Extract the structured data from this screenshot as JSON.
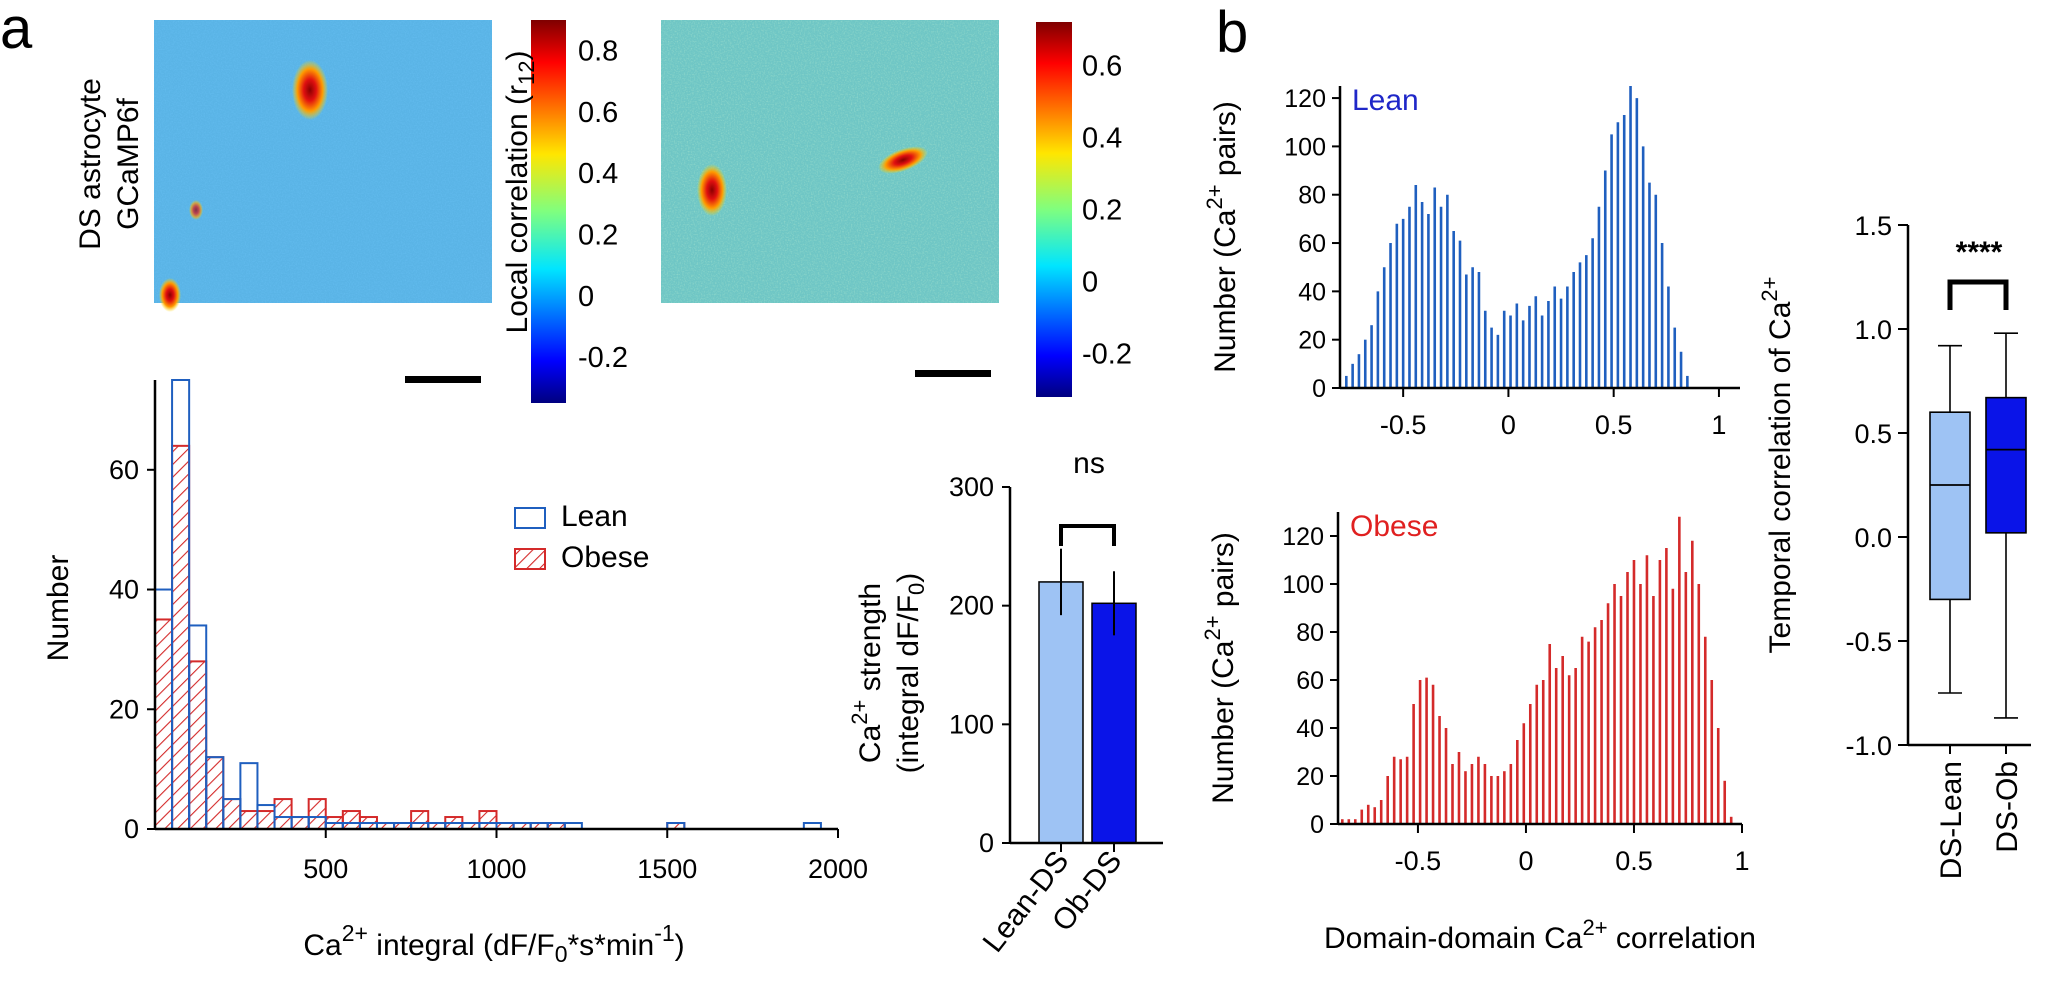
{
  "figure": {
    "panel_a_letter": "a",
    "panel_b_letter": "b"
  },
  "colors": {
    "lean_blue": "#1f5fbf",
    "obese_red": "#d42a2a",
    "lean_light": "#9ec3f4",
    "dark_blue": "#0a14e8",
    "lean_text": "#1f27c8",
    "obese_text": "#e02020"
  },
  "images": {
    "row_label_line1": "DS astrocyte",
    "row_label_line2": "GCaMP6f",
    "colorbar1": {
      "title": "Local correlation (r",
      "title_sub": "12",
      "title_end": ")",
      "ticks": [
        "0.8",
        "0.6",
        "0.4",
        "0.2",
        "0",
        "-0.2"
      ],
      "tick_values": [
        0.8,
        0.6,
        0.4,
        0.2,
        0,
        -0.2
      ],
      "range": [
        -0.35,
        0.9
      ]
    },
    "colorbar2": {
      "ticks": [
        "0.6",
        "0.4",
        "0.2",
        "0",
        "-0.2"
      ],
      "tick_values": [
        0.6,
        0.4,
        0.2,
        0,
        -0.2
      ],
      "range": [
        -0.32,
        0.72
      ]
    },
    "colormap": "jet",
    "heatmap_background": "#5ab4e6"
  },
  "chart_data": [
    {
      "id": "histogram",
      "type": "bar",
      "title": "",
      "xlabel_main": "Ca",
      "xlabel_sup": "2+",
      "xlabel_rest": " integral (dF/F",
      "xlabel_sub": "0",
      "xlabel_rest2": "*s*min",
      "xlabel_sup2": "-1",
      "xlabel_end": ")",
      "ylabel": "Number",
      "xlim": [
        0,
        2000
      ],
      "ylim": [
        0,
        75
      ],
      "xticks": [
        "500",
        "1000",
        "1500",
        "2000"
      ],
      "xtick_values": [
        500,
        1000,
        1500,
        2000
      ],
      "yticks": [
        "0",
        "20",
        "40",
        "60"
      ],
      "ytick_values": [
        0,
        20,
        40,
        60
      ],
      "bin_width": 50,
      "bin_starts": [
        0,
        50,
        100,
        150,
        200,
        250,
        300,
        350,
        400,
        450,
        500,
        550,
        600,
        650,
        700,
        750,
        800,
        850,
        900,
        950,
        1000,
        1050,
        1100,
        1150,
        1200,
        1500,
        1900
      ],
      "legend": {
        "position": "upper-right",
        "entries": [
          "Lean",
          "Obese"
        ]
      },
      "series": [
        {
          "name": "Lean",
          "style": "outline",
          "values": [
            40,
            75,
            34,
            12,
            5,
            11,
            4,
            2,
            2,
            2,
            1,
            1,
            1,
            1,
            1,
            1,
            1,
            1,
            1,
            1,
            1,
            1,
            1,
            1,
            1,
            1,
            1
          ]
        },
        {
          "name": "Obese",
          "style": "hatched",
          "values": [
            35,
            64,
            28,
            12,
            5,
            3,
            3,
            5,
            2,
            5,
            2,
            3,
            2,
            1,
            1,
            3,
            1,
            2,
            1,
            3,
            1,
            1,
            1,
            1,
            0,
            1,
            0
          ]
        }
      ]
    },
    {
      "id": "strength-bars",
      "type": "bar",
      "ylabel_line1_pre": "Ca",
      "ylabel_line1_sup": "2+",
      "ylabel_line1_post": " strength",
      "ylabel_line2": "(integral dF/F",
      "ylabel_line2_sub": "0",
      "ylabel_line2_end": ")",
      "ylim": [
        0,
        300
      ],
      "yticks": [
        "0",
        "100",
        "200",
        "300"
      ],
      "ytick_values": [
        0,
        100,
        200,
        300
      ],
      "categories": [
        "Lean-DS",
        "Ob-DS"
      ],
      "values": [
        220,
        202
      ],
      "errors": [
        28,
        27
      ],
      "significance": "ns"
    },
    {
      "id": "lean-correlation-hist",
      "type": "bar",
      "label": "Lean",
      "ylabel_pre": "Number (Ca",
      "ylabel_sup": "2+",
      "ylabel_post": " pairs)",
      "xlim": [
        -0.8,
        1.1
      ],
      "ylim": [
        0,
        125
      ],
      "xticks": [
        "-0.5",
        "0",
        "0.5",
        "1"
      ],
      "xtick_values": [
        -0.5,
        0,
        0.5,
        1
      ],
      "yticks": [
        "0",
        "20",
        "40",
        "60",
        "80",
        "100",
        "120"
      ],
      "ytick_values": [
        0,
        20,
        40,
        60,
        80,
        100,
        120
      ],
      "x": [
        -0.77,
        -0.74,
        -0.71,
        -0.68,
        -0.65,
        -0.62,
        -0.59,
        -0.56,
        -0.53,
        -0.5,
        -0.47,
        -0.44,
        -0.41,
        -0.38,
        -0.35,
        -0.32,
        -0.29,
        -0.26,
        -0.23,
        -0.2,
        -0.17,
        -0.14,
        -0.11,
        -0.08,
        -0.05,
        -0.02,
        0.01,
        0.04,
        0.07,
        0.1,
        0.13,
        0.16,
        0.19,
        0.22,
        0.25,
        0.28,
        0.31,
        0.34,
        0.37,
        0.4,
        0.43,
        0.46,
        0.49,
        0.52,
        0.55,
        0.58,
        0.61,
        0.64,
        0.67,
        0.7,
        0.73,
        0.76,
        0.79,
        0.82,
        0.85
      ],
      "values": [
        5,
        10,
        14,
        20,
        26,
        40,
        50,
        60,
        68,
        70,
        75,
        84,
        77,
        72,
        83,
        75,
        80,
        65,
        61,
        47,
        50,
        48,
        32,
        25,
        22,
        32,
        30,
        35,
        28,
        34,
        38,
        30,
        36,
        42,
        37,
        42,
        48,
        52,
        55,
        62,
        75,
        90,
        105,
        110,
        113,
        125,
        120,
        100,
        85,
        80,
        60,
        42,
        25,
        15,
        5
      ]
    },
    {
      "id": "obese-correlation-hist",
      "type": "bar",
      "label": "Obese",
      "ylabel_pre": "Number (Ca",
      "ylabel_sup": "2+",
      "ylabel_post": " pairs)",
      "xlabel_pre": "Domain-domain Ca",
      "xlabel_sup": "2+",
      "xlabel_post": " correlation",
      "xlim": [
        -0.87,
        1.0
      ],
      "ylim": [
        0,
        130
      ],
      "xticks": [
        "-0.5",
        "0",
        "0.5",
        "1"
      ],
      "xtick_values": [
        -0.5,
        0,
        0.5,
        1
      ],
      "yticks": [
        "0",
        "20",
        "40",
        "60",
        "80",
        "100",
        "120"
      ],
      "ytick_values": [
        0,
        20,
        40,
        60,
        80,
        100,
        120
      ],
      "x": [
        -0.85,
        -0.82,
        -0.79,
        -0.76,
        -0.73,
        -0.7,
        -0.67,
        -0.64,
        -0.61,
        -0.58,
        -0.55,
        -0.52,
        -0.49,
        -0.46,
        -0.43,
        -0.4,
        -0.37,
        -0.34,
        -0.31,
        -0.28,
        -0.25,
        -0.22,
        -0.19,
        -0.16,
        -0.13,
        -0.1,
        -0.07,
        -0.04,
        -0.01,
        0.02,
        0.05,
        0.08,
        0.11,
        0.14,
        0.17,
        0.2,
        0.23,
        0.26,
        0.29,
        0.32,
        0.35,
        0.38,
        0.41,
        0.44,
        0.47,
        0.5,
        0.53,
        0.56,
        0.59,
        0.62,
        0.65,
        0.68,
        0.71,
        0.74,
        0.77,
        0.8,
        0.83,
        0.86,
        0.89,
        0.92,
        0.95
      ],
      "values": [
        2,
        2,
        2,
        6,
        8,
        7,
        10,
        20,
        28,
        27,
        28,
        50,
        60,
        61,
        58,
        45,
        40,
        25,
        30,
        22,
        25,
        28,
        25,
        20,
        20,
        22,
        25,
        35,
        42,
        50,
        58,
        60,
        75,
        65,
        70,
        62,
        65,
        78,
        76,
        82,
        85,
        92,
        100,
        95,
        105,
        110,
        100,
        112,
        95,
        110,
        115,
        98,
        128,
        105,
        118,
        100,
        78,
        60,
        40,
        18,
        3
      ]
    },
    {
      "id": "boxplot",
      "type": "box",
      "ylabel_pre": "Temporal correlation of Ca",
      "ylabel_sup": "2+",
      "ylim": [
        -1.0,
        1.5
      ],
      "yticks": [
        "1.5",
        "1.0",
        "0.5",
        "0.0",
        "-0.5",
        "-1.0"
      ],
      "ytick_values": [
        1.5,
        1.0,
        0.5,
        0.0,
        -0.5,
        -1.0
      ],
      "categories": [
        "DS-Lean",
        "DS-Ob"
      ],
      "boxes": [
        {
          "name": "DS-Lean",
          "min": -0.75,
          "q1": -0.3,
          "median": 0.25,
          "q3": 0.6,
          "max": 0.92
        },
        {
          "name": "DS-Ob",
          "min": -0.87,
          "q1": 0.02,
          "median": 0.42,
          "q3": 0.67,
          "max": 0.98
        }
      ],
      "significance": "****"
    }
  ]
}
